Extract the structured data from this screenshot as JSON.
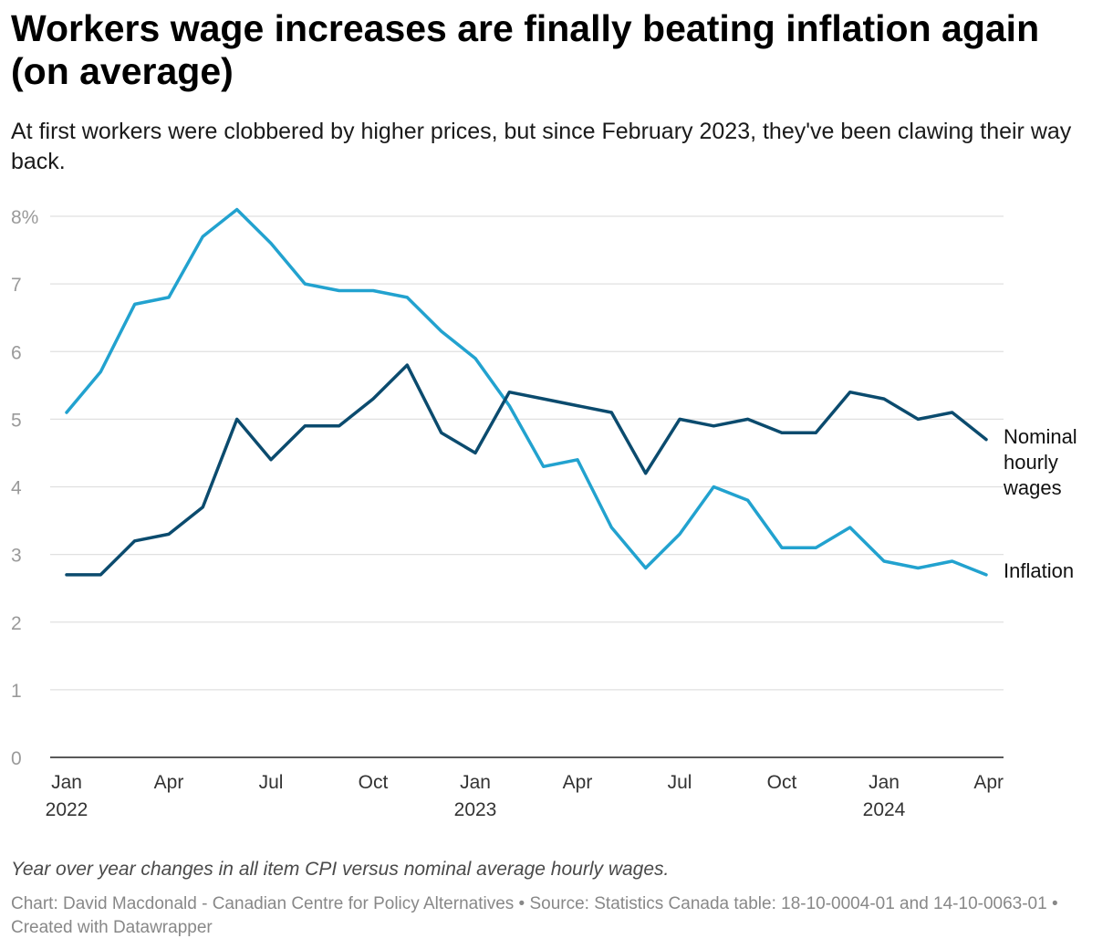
{
  "title": "Workers wage increases are finally beating inflation again (on average)",
  "subtitle": "At first workers were clobbered by higher prices, but since February 2023, they've been clawing their way back.",
  "note": "Year over year changes in all item CPI versus nominal average hourly wages.",
  "source": "Chart: David Macdonald - Canadian Centre for Policy Alternatives • Source: Statistics Canada table: 18-10-0004-01 and 14-10-0063-01 • Created with Datawrapper",
  "chart_data": {
    "type": "line",
    "title": "Workers wage increases are finally beating inflation again (on average)",
    "xlabel": "",
    "ylabel": "",
    "ylim": [
      0,
      8
    ],
    "y_ticks": [
      {
        "value": 0,
        "label": "0"
      },
      {
        "value": 1,
        "label": "1"
      },
      {
        "value": 2,
        "label": "2"
      },
      {
        "value": 3,
        "label": "3"
      },
      {
        "value": 4,
        "label": "4"
      },
      {
        "value": 5,
        "label": "5"
      },
      {
        "value": 6,
        "label": "6"
      },
      {
        "value": 7,
        "label": "7"
      },
      {
        "value": 8,
        "label": "8%"
      }
    ],
    "x": [
      "Jan 2022",
      "Feb 2022",
      "Mar 2022",
      "Apr 2022",
      "May 2022",
      "Jun 2022",
      "Jul 2022",
      "Aug 2022",
      "Sep 2022",
      "Oct 2022",
      "Nov 2022",
      "Dec 2022",
      "Jan 2023",
      "Feb 2023",
      "Mar 2023",
      "Apr 2023",
      "May 2023",
      "Jun 2023",
      "Jul 2023",
      "Aug 2023",
      "Sep 2023",
      "Oct 2023",
      "Nov 2023",
      "Dec 2023",
      "Jan 2024",
      "Feb 2024",
      "Mar 2024",
      "Apr 2024"
    ],
    "x_ticks": [
      {
        "index": 0,
        "month": "Jan",
        "year": "2022"
      },
      {
        "index": 3,
        "month": "Apr",
        "year": ""
      },
      {
        "index": 6,
        "month": "Jul",
        "year": ""
      },
      {
        "index": 9,
        "month": "Oct",
        "year": ""
      },
      {
        "index": 12,
        "month": "Jan",
        "year": "2023"
      },
      {
        "index": 15,
        "month": "Apr",
        "year": ""
      },
      {
        "index": 18,
        "month": "Jul",
        "year": ""
      },
      {
        "index": 21,
        "month": "Oct",
        "year": ""
      },
      {
        "index": 24,
        "month": "Jan",
        "year": "2024"
      },
      {
        "index": 27,
        "month": "Apr",
        "year": ""
      }
    ],
    "grid": true,
    "series": [
      {
        "name": "Inflation",
        "label_lines": [
          "Inflation"
        ],
        "color": "#22a2cf",
        "values": [
          5.1,
          5.7,
          6.7,
          6.8,
          7.7,
          8.1,
          7.6,
          7.0,
          6.9,
          6.9,
          6.8,
          6.3,
          5.9,
          5.2,
          4.3,
          4.4,
          3.4,
          2.8,
          3.3,
          4.0,
          3.8,
          3.1,
          3.1,
          3.4,
          2.9,
          2.8,
          2.9,
          2.7
        ]
      },
      {
        "name": "Nominal hourly wages",
        "label_lines": [
          "Nominal",
          "hourly",
          "wages"
        ],
        "color": "#0b4b6e",
        "values": [
          2.7,
          2.7,
          3.2,
          3.3,
          3.7,
          5.0,
          4.4,
          4.9,
          4.9,
          5.3,
          5.8,
          4.8,
          4.5,
          5.4,
          5.3,
          5.2,
          5.1,
          4.2,
          5.0,
          4.9,
          5.0,
          4.8,
          4.8,
          5.4,
          5.3,
          5.0,
          5.1,
          4.7
        ]
      }
    ]
  }
}
